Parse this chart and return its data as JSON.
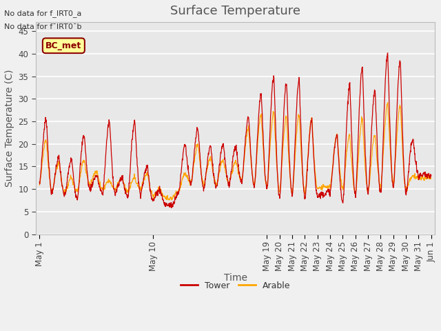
{
  "title": "Surface Temperature",
  "ylabel": "Surface Temperature (C)",
  "xlabel": "Time",
  "annotation_line1": "No data for f_IRT0_a",
  "annotation_line2": "No data for f¯IRT0¯b",
  "legend_box_label": "BC_met",
  "legend_box_color": "#ffff99",
  "legend_box_border": "#8b0000",
  "yticks": [
    0,
    5,
    10,
    15,
    20,
    25,
    30,
    35,
    40,
    45
  ],
  "ylim": [
    0,
    47
  ],
  "tower_color": "#cc0000",
  "arable_color": "#ffa500",
  "fig_bg_color": "#f0f0f0",
  "plot_bg_color": "#e8e8e8",
  "grid_color": "#ffffff",
  "title_fontsize": 13,
  "axis_label_fontsize": 10,
  "tick_fontsize": 8.5,
  "day_data_tower": [
    [
      11.0,
      25.5
    ],
    [
      9.0,
      17.0
    ],
    [
      8.5,
      16.5
    ],
    [
      8.0,
      22.0
    ],
    [
      10.0,
      13.0
    ],
    [
      9.0,
      25.0
    ],
    [
      9.0,
      12.5
    ],
    [
      8.5,
      25.0
    ],
    [
      9.0,
      15.0
    ],
    [
      7.5,
      10.0
    ],
    [
      6.5,
      6.5
    ],
    [
      9.0,
      20.0
    ],
    [
      11.0,
      23.5
    ],
    [
      10.0,
      19.5
    ],
    [
      10.5,
      20.0
    ],
    [
      11.0,
      19.5
    ],
    [
      11.5,
      26.0
    ],
    [
      10.5,
      31.0
    ],
    [
      10.0,
      35.0
    ],
    [
      8.0,
      33.5
    ],
    [
      8.5,
      34.0
    ],
    [
      8.0,
      25.0
    ],
    [
      8.5,
      9.0
    ],
    [
      9.5,
      22.0
    ],
    [
      7.0,
      33.0
    ],
    [
      8.5,
      37.0
    ],
    [
      9.0,
      32.0
    ],
    [
      9.0,
      40.0
    ],
    [
      10.0,
      38.5
    ],
    [
      9.0,
      21.0
    ],
    [
      13.0,
      13.0
    ]
  ],
  "day_data_arable": [
    [
      11.0,
      21.0
    ],
    [
      9.5,
      16.0
    ],
    [
      9.0,
      12.5
    ],
    [
      9.5,
      16.5
    ],
    [
      11.0,
      14.0
    ],
    [
      10.0,
      12.0
    ],
    [
      10.0,
      12.5
    ],
    [
      9.5,
      12.5
    ],
    [
      10.0,
      13.5
    ],
    [
      8.5,
      10.0
    ],
    [
      8.0,
      8.0
    ],
    [
      9.5,
      13.5
    ],
    [
      11.5,
      20.0
    ],
    [
      11.0,
      17.0
    ],
    [
      11.0,
      16.5
    ],
    [
      11.5,
      16.0
    ],
    [
      12.0,
      23.5
    ],
    [
      11.0,
      26.5
    ],
    [
      10.5,
      27.0
    ],
    [
      9.5,
      26.0
    ],
    [
      9.0,
      26.5
    ],
    [
      9.0,
      25.5
    ],
    [
      10.0,
      10.5
    ],
    [
      10.5,
      22.0
    ],
    [
      10.0,
      22.0
    ],
    [
      9.0,
      25.5
    ],
    [
      9.5,
      22.0
    ],
    [
      10.5,
      29.0
    ],
    [
      11.5,
      28.5
    ],
    [
      10.0,
      13.0
    ],
    [
      12.5,
      12.5
    ]
  ]
}
